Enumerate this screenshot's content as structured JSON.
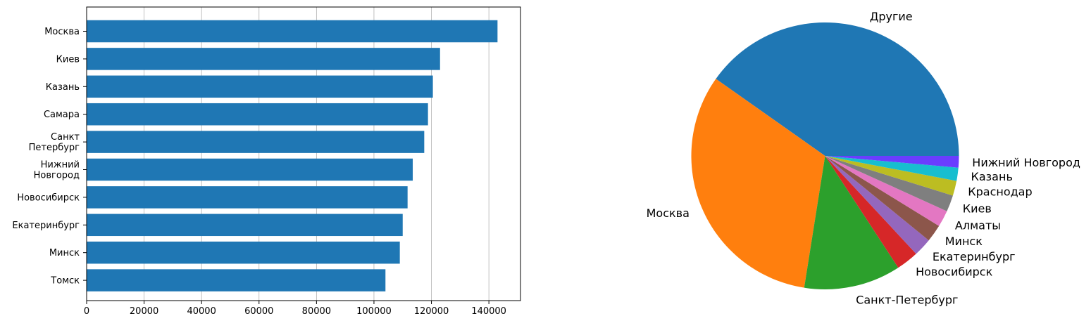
{
  "chart_data": [
    {
      "type": "bar",
      "orientation": "horizontal",
      "categories": [
        "Москва",
        "Киев",
        "Казань",
        "Самара",
        "Санкт\nПетербург",
        "Нижний\nНовгород",
        "Новосибирск",
        "Екатеринбург",
        "Минск",
        "Томск"
      ],
      "values": [
        143000,
        123000,
        120500,
        118800,
        117500,
        113500,
        111700,
        110000,
        109000,
        104000
      ],
      "xlim": [
        0,
        151000
      ],
      "xticks": [
        0,
        20000,
        40000,
        60000,
        80000,
        100000,
        120000,
        140000
      ],
      "xtick_labels": [
        "0",
        "20000",
        "40000",
        "60000",
        "80000",
        "100000",
        "120000",
        "140000"
      ],
      "grid": "x",
      "color": "#1f77b4"
    },
    {
      "type": "pie",
      "labels": [
        "Другие",
        "Москва",
        "Санкт-Петербург",
        "Новосибирск",
        "Екатеринбург",
        "Минск",
        "Алматы",
        "Киев",
        "Краснодар",
        "Казань",
        "Нижний Новгород"
      ],
      "values": [
        40.2,
        32.3,
        11.7,
        2.7,
        2.2,
        2.1,
        2.0,
        2.0,
        1.8,
        1.6,
        1.4
      ],
      "colors": [
        "#1f77b4",
        "#ff7f0e",
        "#2ca02c",
        "#d62728",
        "#9467bd",
        "#8c564b",
        "#e377c2",
        "#7f7f7f",
        "#bcbd22",
        "#17becf",
        "#6a3dff"
      ]
    }
  ]
}
